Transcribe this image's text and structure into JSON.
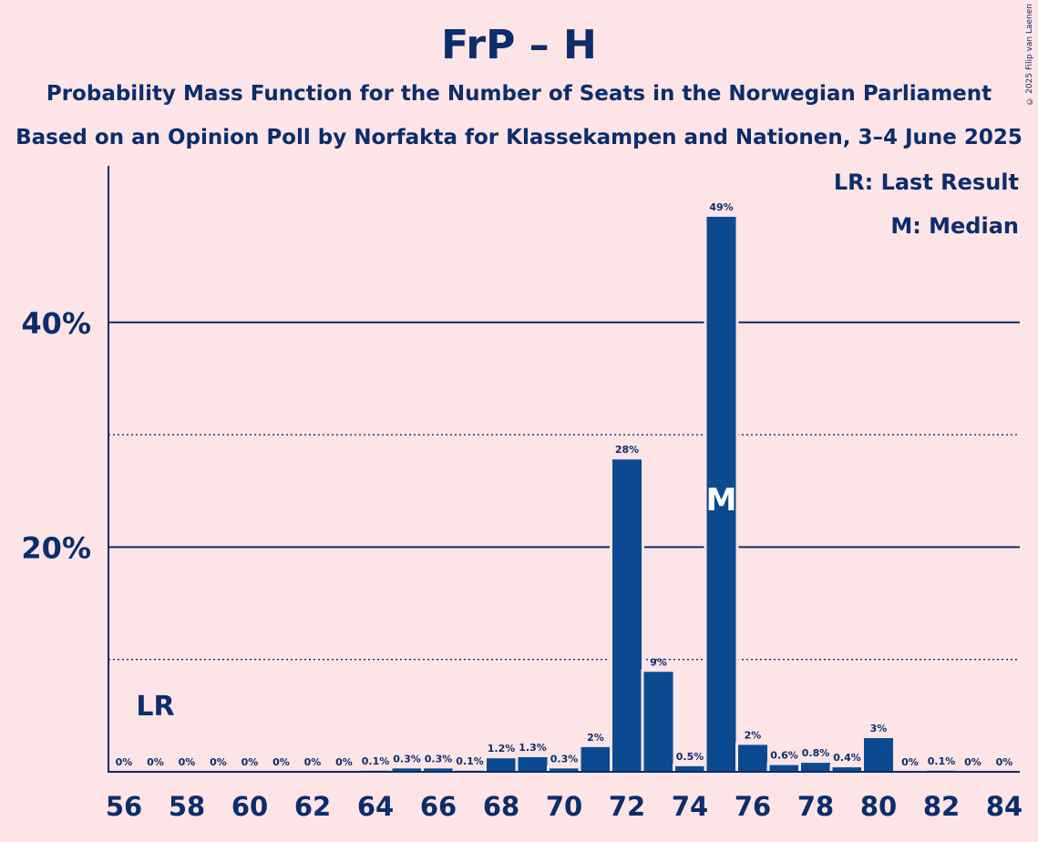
{
  "title": "FrP – H",
  "subtitle1": "Probability Mass Function for the Number of Seats in the Norwegian Parliament",
  "subtitle2": "Based on an Opinion Poll by Norfakta for Klassekampen and Nationen, 3–4 June 2025",
  "legend": {
    "lr": "LR: Last Result",
    "m": "M: Median"
  },
  "copyright": "© 2025 Filip van Laenen",
  "chart_data": {
    "type": "bar",
    "x": [
      56,
      57,
      58,
      59,
      60,
      61,
      62,
      63,
      64,
      65,
      66,
      67,
      68,
      69,
      70,
      71,
      72,
      73,
      74,
      75,
      76,
      77,
      78,
      79,
      80,
      81,
      82,
      83,
      84
    ],
    "values": [
      0,
      0,
      0,
      0,
      0,
      0,
      0,
      0,
      0.1,
      0.3,
      0.3,
      0.1,
      1.2,
      1.3,
      0.3,
      2.2,
      27.8,
      8.9,
      0.5,
      49.4,
      2.4,
      0.6,
      0.8,
      0.4,
      3.0,
      0,
      0.1,
      0,
      0
    ],
    "labels": [
      "0%",
      "0%",
      "0%",
      "0%",
      "0%",
      "0%",
      "0%",
      "0%",
      "0.1%",
      "0.3%",
      "0.3%",
      "0.1%",
      "1.2%",
      "1.3%",
      "0.3%",
      "2%",
      "28%",
      "9%",
      "0.5%",
      "49%",
      "2%",
      "0.6%",
      "0.8%",
      "0.4%",
      "3%",
      "0%",
      "0.1%",
      "0%",
      "0%"
    ],
    "x_ticks": [
      "56",
      "58",
      "60",
      "62",
      "64",
      "66",
      "68",
      "70",
      "72",
      "74",
      "76",
      "78",
      "80",
      "82",
      "84"
    ],
    "y_ticks": [
      "20%",
      "40%"
    ],
    "ylim": [
      0,
      54
    ],
    "solid_gridlines": [
      20,
      40
    ],
    "dotted_gridlines": [
      10,
      30
    ],
    "last_result_seat": 57,
    "last_result_label": "LR",
    "median_seat": 75,
    "median_label": "M",
    "bar_color": "#0b4a91",
    "bar_color_alt": "#1a5ea8",
    "line_color": "#0b2d6b"
  }
}
